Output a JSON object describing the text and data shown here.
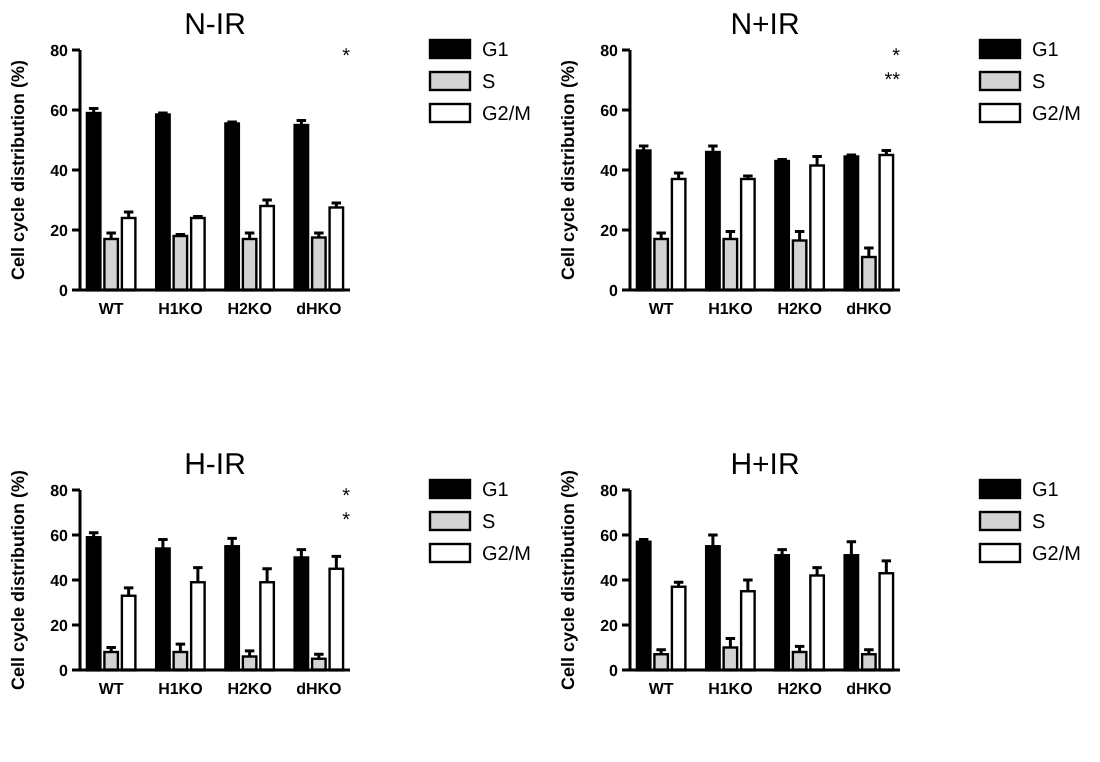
{
  "chart_data": [
    {
      "type": "bar",
      "title": "N-IR",
      "ylabel": "Cell cycle distribution (%)",
      "categories": [
        "WT",
        "H1KO",
        "H2KO",
        "dHKO"
      ],
      "ylim": [
        0,
        80
      ],
      "yticks": [
        0,
        20,
        40,
        60,
        80
      ],
      "legend": "top right",
      "series": [
        {
          "name": "G1",
          "color": "#000000",
          "values": [
            59,
            58.5,
            55.5,
            55
          ],
          "errors": [
            1.5,
            0.5,
            0.5,
            1.5
          ]
        },
        {
          "name": "S",
          "color": "#d3d3d3",
          "values": [
            17,
            18,
            17,
            17.5
          ],
          "errors": [
            2,
            0.5,
            2,
            1.5
          ]
        },
        {
          "name": "G2/M",
          "color": "#ffffff",
          "values": [
            24,
            24,
            28,
            27.5
          ],
          "errors": [
            2,
            0.5,
            2,
            1.5
          ]
        }
      ],
      "annotations": [
        "*"
      ]
    },
    {
      "type": "bar",
      "title": "N+IR",
      "ylabel": "Cell cycle distribution (%)",
      "categories": [
        "WT",
        "H1KO",
        "H2KO",
        "dHKO"
      ],
      "ylim": [
        0,
        80
      ],
      "yticks": [
        0,
        20,
        40,
        60,
        80
      ],
      "legend": "top right",
      "series": [
        {
          "name": "G1",
          "color": "#000000",
          "values": [
            46.5,
            46,
            43,
            44.5
          ],
          "errors": [
            1.5,
            2,
            0.5,
            0.5
          ]
        },
        {
          "name": "S",
          "color": "#d3d3d3",
          "values": [
            17,
            17,
            16.5,
            11
          ],
          "errors": [
            2,
            2.5,
            3,
            3
          ]
        },
        {
          "name": "G2/M",
          "color": "#ffffff",
          "values": [
            37,
            37,
            41.5,
            45
          ],
          "errors": [
            2,
            1,
            3,
            1.5
          ]
        }
      ],
      "annotations": [
        "*",
        "**"
      ]
    },
    {
      "type": "bar",
      "title": "H-IR",
      "ylabel": "Cell cycle distribution (%)",
      "categories": [
        "WT",
        "H1KO",
        "H2KO",
        "dHKO"
      ],
      "ylim": [
        0,
        80
      ],
      "yticks": [
        0,
        20,
        40,
        60,
        80
      ],
      "legend": "top right",
      "series": [
        {
          "name": "G1",
          "color": "#000000",
          "values": [
            59,
            54,
            55,
            50
          ],
          "errors": [
            2,
            4,
            3.5,
            3.5
          ]
        },
        {
          "name": "S",
          "color": "#d3d3d3",
          "values": [
            8,
            8,
            6,
            5
          ],
          "errors": [
            2,
            3.5,
            2.5,
            2
          ]
        },
        {
          "name": "G2/M",
          "color": "#ffffff",
          "values": [
            33,
            39,
            39,
            45
          ],
          "errors": [
            3.5,
            6.5,
            6,
            5.5
          ]
        }
      ],
      "annotations": [
        "*",
        "*"
      ]
    },
    {
      "type": "bar",
      "title": "H+IR",
      "ylabel": "Cell cycle distribution (%)",
      "categories": [
        "WT",
        "H1KO",
        "H2KO",
        "dHKO"
      ],
      "ylim": [
        0,
        80
      ],
      "yticks": [
        0,
        20,
        40,
        60,
        80
      ],
      "legend": "top right",
      "series": [
        {
          "name": "G1",
          "color": "#000000",
          "values": [
            57,
            55,
            51,
            51
          ],
          "errors": [
            1,
            5,
            2.5,
            6
          ]
        },
        {
          "name": "S",
          "color": "#d3d3d3",
          "values": [
            7,
            10,
            8,
            7
          ],
          "errors": [
            2,
            4,
            2.5,
            2
          ]
        },
        {
          "name": "G2/M",
          "color": "#ffffff",
          "values": [
            37,
            35,
            42,
            43
          ],
          "errors": [
            2,
            5,
            3.5,
            5.5
          ]
        }
      ]
    }
  ]
}
